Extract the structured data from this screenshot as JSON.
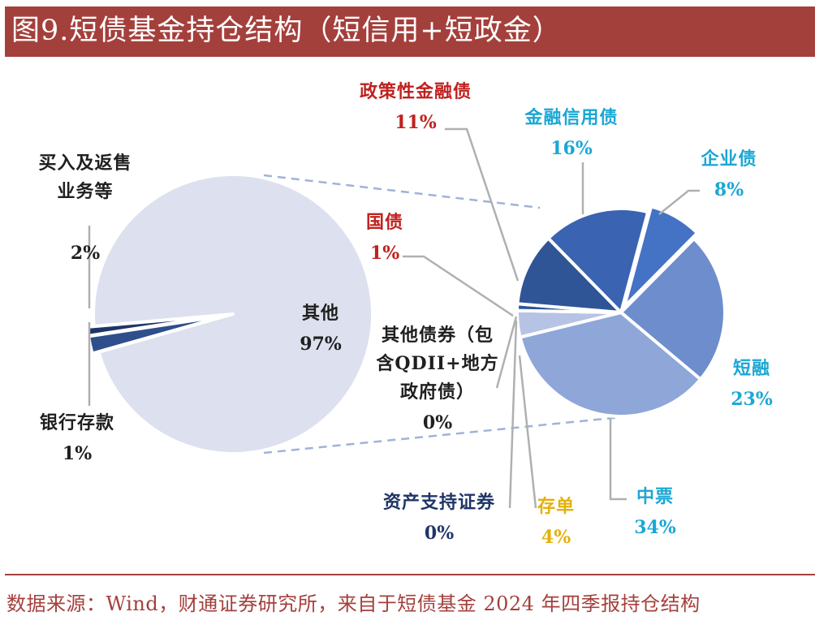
{
  "header": {
    "title": "图9.短债基金持仓结构（短信用+短政金）"
  },
  "colors": {
    "accent": "#a4403c",
    "label_dark": "#1f1f1f",
    "label_red": "#c0211f",
    "label_cyan": "#1aa7d4",
    "label_gold": "#e3b10a",
    "label_navy": "#1f3566"
  },
  "chart_data": [
    {
      "type": "pie",
      "slices": [
        {
          "label": "其他",
          "value": 97,
          "value_label": "97%",
          "color": "#dde0ee",
          "label_color": "#1f1f1f"
        },
        {
          "label": "买入及返售业务等",
          "label_lines": [
            "买入及返售",
            "业务等"
          ],
          "value": 2,
          "value_label": "2%",
          "color": "#2e4e8c",
          "label_color": "#1f1f1f"
        },
        {
          "label": "银行存款",
          "value": 1,
          "value_label": "1%",
          "color": "#1d3566",
          "label_color": "#1f1f1f"
        }
      ]
    },
    {
      "type": "pie",
      "slices": [
        {
          "label": "企业债",
          "value": 8,
          "value_label": "8%",
          "color": "#4472c4",
          "label_color": "#1aa7d4"
        },
        {
          "label": "短融",
          "value": 23,
          "value_label": "23%",
          "color": "#6e8dcc",
          "label_color": "#1aa7d4"
        },
        {
          "label": "中票",
          "value": 34,
          "value_label": "34%",
          "color": "#8fa6d8",
          "label_color": "#1aa7d4"
        },
        {
          "label": "存单",
          "value": 4,
          "value_label": "4%",
          "color": "#b6c3e4",
          "label_color": "#e3b10a"
        },
        {
          "label": "资产支持证券",
          "value": 0,
          "value_label": "0%",
          "color": "#1f3566",
          "label_color": "#1f3566"
        },
        {
          "label": "其他债券（包含QDII+地方政府债）",
          "label_lines": [
            "其他债券（包",
            "含QDII+地方",
            "政府债）"
          ],
          "value": 0,
          "value_label": "0%",
          "color": "#c9d1e8",
          "label_color": "#1f1f1f"
        },
        {
          "label": "国债",
          "value": 1,
          "value_label": "1%",
          "color": "#2f5597",
          "label_color": "#c0211f"
        },
        {
          "label": "政策性金融债",
          "value": 11,
          "value_label": "11%",
          "color": "#2f5597",
          "label_color": "#c0211f"
        },
        {
          "label": "金融信用债",
          "value": 16,
          "value_label": "16%",
          "color": "#3a64b2",
          "label_color": "#1aa7d4"
        }
      ]
    }
  ],
  "footer": {
    "source": "数据来源：Wind，财通证券研究所，来自于短债基金 2024 年四季报持仓结构"
  }
}
